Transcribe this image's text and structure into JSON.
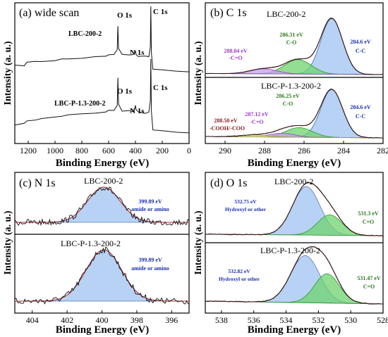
{
  "colors": {
    "blue_fill": "#9fc3f0",
    "green_fill": "#6fd36f",
    "purple_fill": "#c89ee8",
    "yellow_fill": "#e8e89a",
    "annot_blue": "#1a2fb0",
    "annot_green": "#2a7a1a",
    "annot_purple": "#9a38c8",
    "annot_red": "#8a1a1a",
    "annot_magenta": "#a0206a",
    "fit_red": "#b03030",
    "raw_black": "#111111"
  },
  "chart_data": [
    {
      "type": "line",
      "panel": "a",
      "title": "(a) wide scan",
      "xlabel": "Binding Energy (eV)",
      "ylabel": "Intensity (a. u.)",
      "xlim": [
        1300,
        0
      ],
      "x_ticks": [
        "1200",
        "1000",
        "800",
        "600",
        "400",
        "200",
        "0"
      ],
      "series": [
        {
          "name": "LBC-200-2",
          "x": [
            1300,
            1230,
            1210,
            1150,
            1100,
            1000,
            950,
            900,
            800,
            700,
            620,
            600,
            560,
            536,
            531,
            526,
            500,
            450,
            420,
            405,
            400,
            395,
            380,
            330,
            300,
            289,
            285,
            281,
            270,
            200,
            100,
            0
          ],
          "y": [
            10,
            11,
            15,
            16,
            17,
            18,
            20,
            21,
            22,
            24,
            25,
            27,
            28,
            34,
            70,
            36,
            28,
            27,
            26,
            30,
            33,
            28,
            25,
            24,
            24,
            40,
            100,
            30,
            5,
            4,
            2,
            1
          ]
        },
        {
          "name": "LBC-P-1.3-200-2",
          "x": [
            1300,
            1230,
            1210,
            1150,
            1100,
            1000,
            950,
            900,
            800,
            700,
            620,
            600,
            560,
            536,
            531,
            526,
            500,
            450,
            420,
            405,
            400,
            395,
            380,
            330,
            300,
            289,
            285,
            281,
            270,
            200,
            100,
            0
          ],
          "y": [
            12,
            14,
            18,
            19,
            20,
            22,
            24,
            25,
            26,
            27,
            29,
            31,
            32,
            38,
            75,
            40,
            31,
            30,
            29,
            34,
            38,
            32,
            29,
            28,
            28,
            44,
            100,
            30,
            5,
            4,
            2,
            1
          ]
        }
      ],
      "peaks": [
        "O 1s",
        "N 1s",
        "C 1s",
        "O 1s",
        "N 1s",
        "C 1s"
      ]
    },
    {
      "type": "area",
      "panel": "b",
      "title": "(b) C 1s",
      "xlabel": "Binding Energy (eV)",
      "ylabel": "Intensity (a. u.)",
      "xlim": [
        291,
        282
      ],
      "x_ticks": [
        "290",
        "288",
        "286",
        "284",
        "282"
      ],
      "subplots": [
        {
          "name": "LBC-200-2",
          "components": [
            {
              "center_ev": 284.6,
              "height": 1.0,
              "fwhm": 1.3,
              "label": "284.6 eV",
              "sublabel": "C-C"
            },
            {
              "center_ev": 286.31,
              "height": 0.26,
              "fwhm": 1.6,
              "label": "286.31 eV",
              "sublabel": "C-O"
            },
            {
              "center_ev": 288.04,
              "height": 0.09,
              "fwhm": 1.6,
              "label": "288.04 eV",
              "sublabel": "-C=O"
            }
          ]
        },
        {
          "name": "LBC-P-1.3-200-2",
          "components": [
            {
              "center_ev": 284.6,
              "height": 1.0,
              "fwhm": 1.3,
              "label": "284.6 eV",
              "sublabel": "C-C"
            },
            {
              "center_ev": 286.25,
              "height": 0.2,
              "fwhm": 1.6,
              "label": "286.25 eV",
              "sublabel": "C-O"
            },
            {
              "center_ev": 287.12,
              "height": 0.08,
              "fwhm": 1.5,
              "label": "287.12 eV",
              "sublabel": "-C=O"
            },
            {
              "center_ev": 288.5,
              "height": 0.04,
              "fwhm": 1.6,
              "label": "288.50 eV",
              "sublabel": "-COOH/-COO"
            }
          ]
        }
      ]
    },
    {
      "type": "area",
      "panel": "c",
      "title": "(c) N 1s",
      "xlabel": "Binding Energy (eV)",
      "ylabel": "Intensity (a. u.)",
      "xlim": [
        405,
        395
      ],
      "x_ticks": [
        "404",
        "402",
        "400",
        "398",
        "396"
      ],
      "subplots": [
        {
          "name": "LBC-200-2",
          "components": [
            {
              "center_ev": 399.89,
              "height": 1.0,
              "fwhm": 2.2,
              "label": "399.89 eV",
              "sublabel": "amide or amino"
            }
          ]
        },
        {
          "name": "LBC-P-1.3-200-2",
          "components": [
            {
              "center_ev": 399.89,
              "height": 1.0,
              "fwhm": 2.4,
              "label": "399.89 eV",
              "sublabel": "amide or amino"
            }
          ]
        }
      ]
    },
    {
      "type": "area",
      "panel": "d",
      "title": "(d) O 1s",
      "xlabel": "Binding Energy (eV)",
      "ylabel": "Intensity (a. u.)",
      "xlim": [
        539,
        528
      ],
      "x_ticks": [
        "538",
        "536",
        "534",
        "532",
        "530",
        "528"
      ],
      "subplots": [
        {
          "name": "LBC-200-2",
          "components": [
            {
              "center_ev": 532.75,
              "height": 1.0,
              "fwhm": 2.0,
              "label": "532.75 eV",
              "sublabel": "Hydroxyl or other"
            },
            {
              "center_ev": 531.3,
              "height": 0.42,
              "fwhm": 1.8,
              "label": "531.3 eV",
              "sublabel": "C=O"
            }
          ]
        },
        {
          "name": "LBC-P-1.3-200-2",
          "components": [
            {
              "center_ev": 532.82,
              "height": 1.0,
              "fwhm": 2.1,
              "label": "532.82 eV",
              "sublabel": "Hydroxyl or other"
            },
            {
              "center_ev": 531.47,
              "height": 0.62,
              "fwhm": 1.8,
              "label": "531.47 eV",
              "sublabel": "C=O"
            }
          ]
        }
      ]
    }
  ]
}
